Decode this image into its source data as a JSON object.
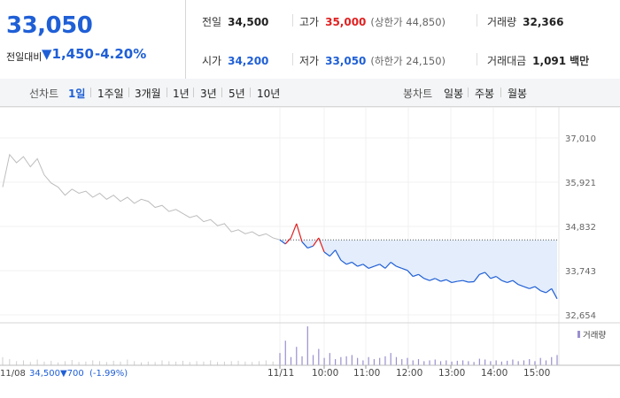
{
  "quote": {
    "price": "33,050",
    "change_label": "전일대비",
    "change_value": "▼1,450",
    "change_rate": "-4.20%"
  },
  "stats": {
    "prev_close": {
      "label": "전일",
      "value": "34,500"
    },
    "open": {
      "label": "시가",
      "value": "34,200"
    },
    "high": {
      "label": "고가",
      "value": "35,000",
      "sub": "(상한가 44,850)"
    },
    "low": {
      "label": "저가",
      "value": "33,050",
      "sub": "(하한가 24,150)"
    },
    "volume": {
      "label": "거래량",
      "value": "32,366"
    },
    "amount": {
      "label": "거래대금",
      "value": "1,091",
      "unit": "백만"
    }
  },
  "tabs": {
    "line_label": "선차트",
    "line_items": [
      "1일",
      "1주일",
      "3개월",
      "1년",
      "3년",
      "5년",
      "10년"
    ],
    "line_active": "1일",
    "candle_label": "봉차트",
    "candle_items": [
      "일봉",
      "주봉",
      "월봉"
    ]
  },
  "colors": {
    "accent": "#1f5fd6",
    "up": "#e02020",
    "prev_line": "#bdbdbd",
    "fill": "#e3edfb"
  },
  "chart_data": {
    "type": "line",
    "y_ticks": [
      "37,010",
      "35,921",
      "34,832",
      "33,743",
      "32,654"
    ],
    "ylim": [
      32654,
      37010
    ],
    "x_tick_labels": [
      "11/08",
      "11/11",
      "10:00",
      "11:00",
      "12:00",
      "13:00",
      "14:00",
      "15:00"
    ],
    "reference_price": 34500,
    "volume_label": "거래량",
    "previous_day": {
      "date": "11/08",
      "close": "34,500",
      "change": "▼700",
      "change_rate": "(-1.99%)",
      "prices": [
        35800,
        36600,
        36400,
        36550,
        36300,
        36500,
        36100,
        35900,
        35800,
        35600,
        35750,
        35650,
        35700,
        35550,
        35650,
        35500,
        35600,
        35450,
        35550,
        35400,
        35500,
        35450,
        35300,
        35350,
        35200,
        35250,
        35150,
        35050,
        35100,
        34950,
        35000,
        34850,
        34900,
        34700,
        34750,
        34650,
        34700,
        34600,
        34650,
        34550,
        34500
      ]
    },
    "today": {
      "date": "11/11",
      "prices": [
        34500,
        34400,
        34550,
        34900,
        34450,
        34300,
        34350,
        34550,
        34200,
        34100,
        34250,
        34000,
        33900,
        33950,
        33850,
        33900,
        33800,
        33850,
        33900,
        33800,
        33950,
        33850,
        33800,
        33750,
        33600,
        33650,
        33550,
        33500,
        33550,
        33480,
        33520,
        33450,
        33480,
        33500,
        33460,
        33470,
        33650,
        33700,
        33550,
        33600,
        33500,
        33450,
        33500,
        33400,
        33350,
        33300,
        33350,
        33250,
        33200,
        33300,
        33050
      ]
    },
    "volume_prev": [
      20,
      15,
      10,
      12,
      8,
      14,
      9,
      11,
      7,
      10,
      13,
      8,
      9,
      12,
      10,
      8,
      11,
      9,
      14,
      10,
      7,
      9,
      8,
      12,
      10,
      9,
      11,
      8,
      10,
      9,
      12,
      8,
      9,
      10,
      11,
      9,
      8,
      10,
      12,
      9,
      18
    ],
    "volume_today": [
      30,
      60,
      20,
      45,
      22,
      95,
      25,
      40,
      18,
      30,
      15,
      20,
      22,
      25,
      18,
      12,
      20,
      15,
      18,
      22,
      30,
      20,
      15,
      18,
      12,
      15,
      10,
      12,
      14,
      10,
      12,
      9,
      11,
      12,
      10,
      8,
      16,
      14,
      10,
      12,
      9,
      11,
      14,
      10,
      12,
      15,
      10,
      18,
      12,
      20,
      25
    ]
  }
}
